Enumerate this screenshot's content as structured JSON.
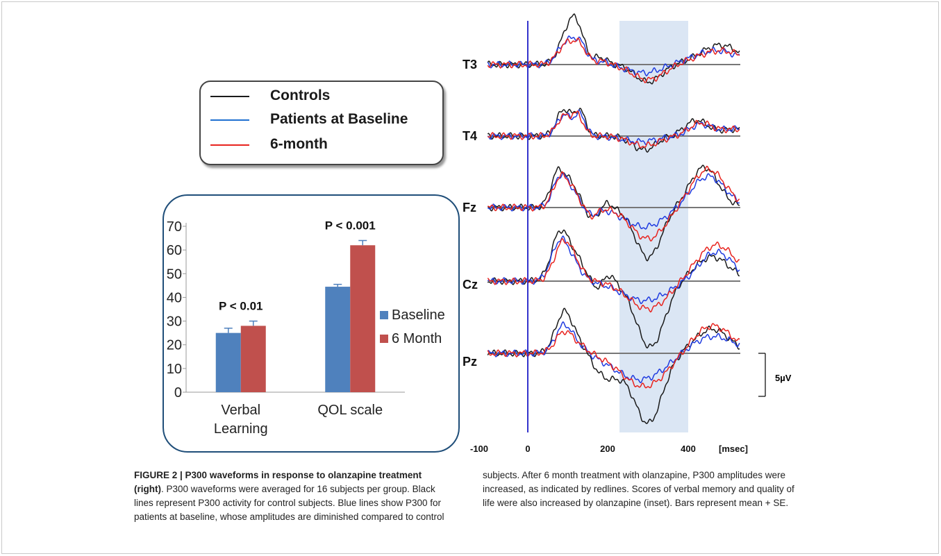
{
  "legend": {
    "items": [
      {
        "label": "Controls",
        "color": "#1a1a1a"
      },
      {
        "label": "Patients at Baseline",
        "color": "#1f6fd1"
      },
      {
        "label": "6-month",
        "color": "#e8231e"
      }
    ]
  },
  "inset_chart": {
    "chart_data": {
      "type": "bar",
      "categories": [
        "Verbal Learning",
        "QOL scale"
      ],
      "category_lines": [
        [
          "Verbal",
          "Learning"
        ],
        [
          "QOL scale"
        ]
      ],
      "series": [
        {
          "name": "Baseline",
          "values": [
            25,
            44.5
          ],
          "errors": [
            2,
            1
          ],
          "color": "#4f81bd"
        },
        {
          "name": "6 Month",
          "values": [
            28,
            62
          ],
          "errors": [
            2,
            2
          ],
          "color": "#c0504d"
        }
      ],
      "ylim": [
        0,
        70
      ],
      "yticks": [
        "0",
        "10",
        "20",
        "30",
        "40",
        "50",
        "60",
        "70"
      ],
      "annotations": [
        "P < 0.01",
        "P < 0.001"
      ],
      "legend_position": "right"
    }
  },
  "erp": {
    "channels": [
      "T3",
      "T4",
      "Fz",
      "Cz",
      "Pz"
    ],
    "x_ticks": [
      "-100",
      "0",
      "200",
      "400",
      "[msec]"
    ],
    "scale_label": "5µV",
    "highlight_window_ms": [
      240,
      400
    ],
    "stimulus_line_color": "#3333cc",
    "highlight_color": "#dbe6f4"
  },
  "caption": {
    "left_bold": "FIGURE 2 | P300 waveforms in response to olanzapine treatment (right)",
    "left_text": ". P300 waveforms were averaged for 16 subjects per group. Black lines represent P300 activity for control subjects. Blue lines show P300 for patients at baseline, whose amplitudes are diminished compared to control",
    "right_text": "subjects. After 6 month treatment with olanzapine, P300 amplitudes were increased, as indicated by redlines. Scores of verbal memory and quality of life were also increased by olanzapine (inset). Bars represent mean + SE."
  }
}
